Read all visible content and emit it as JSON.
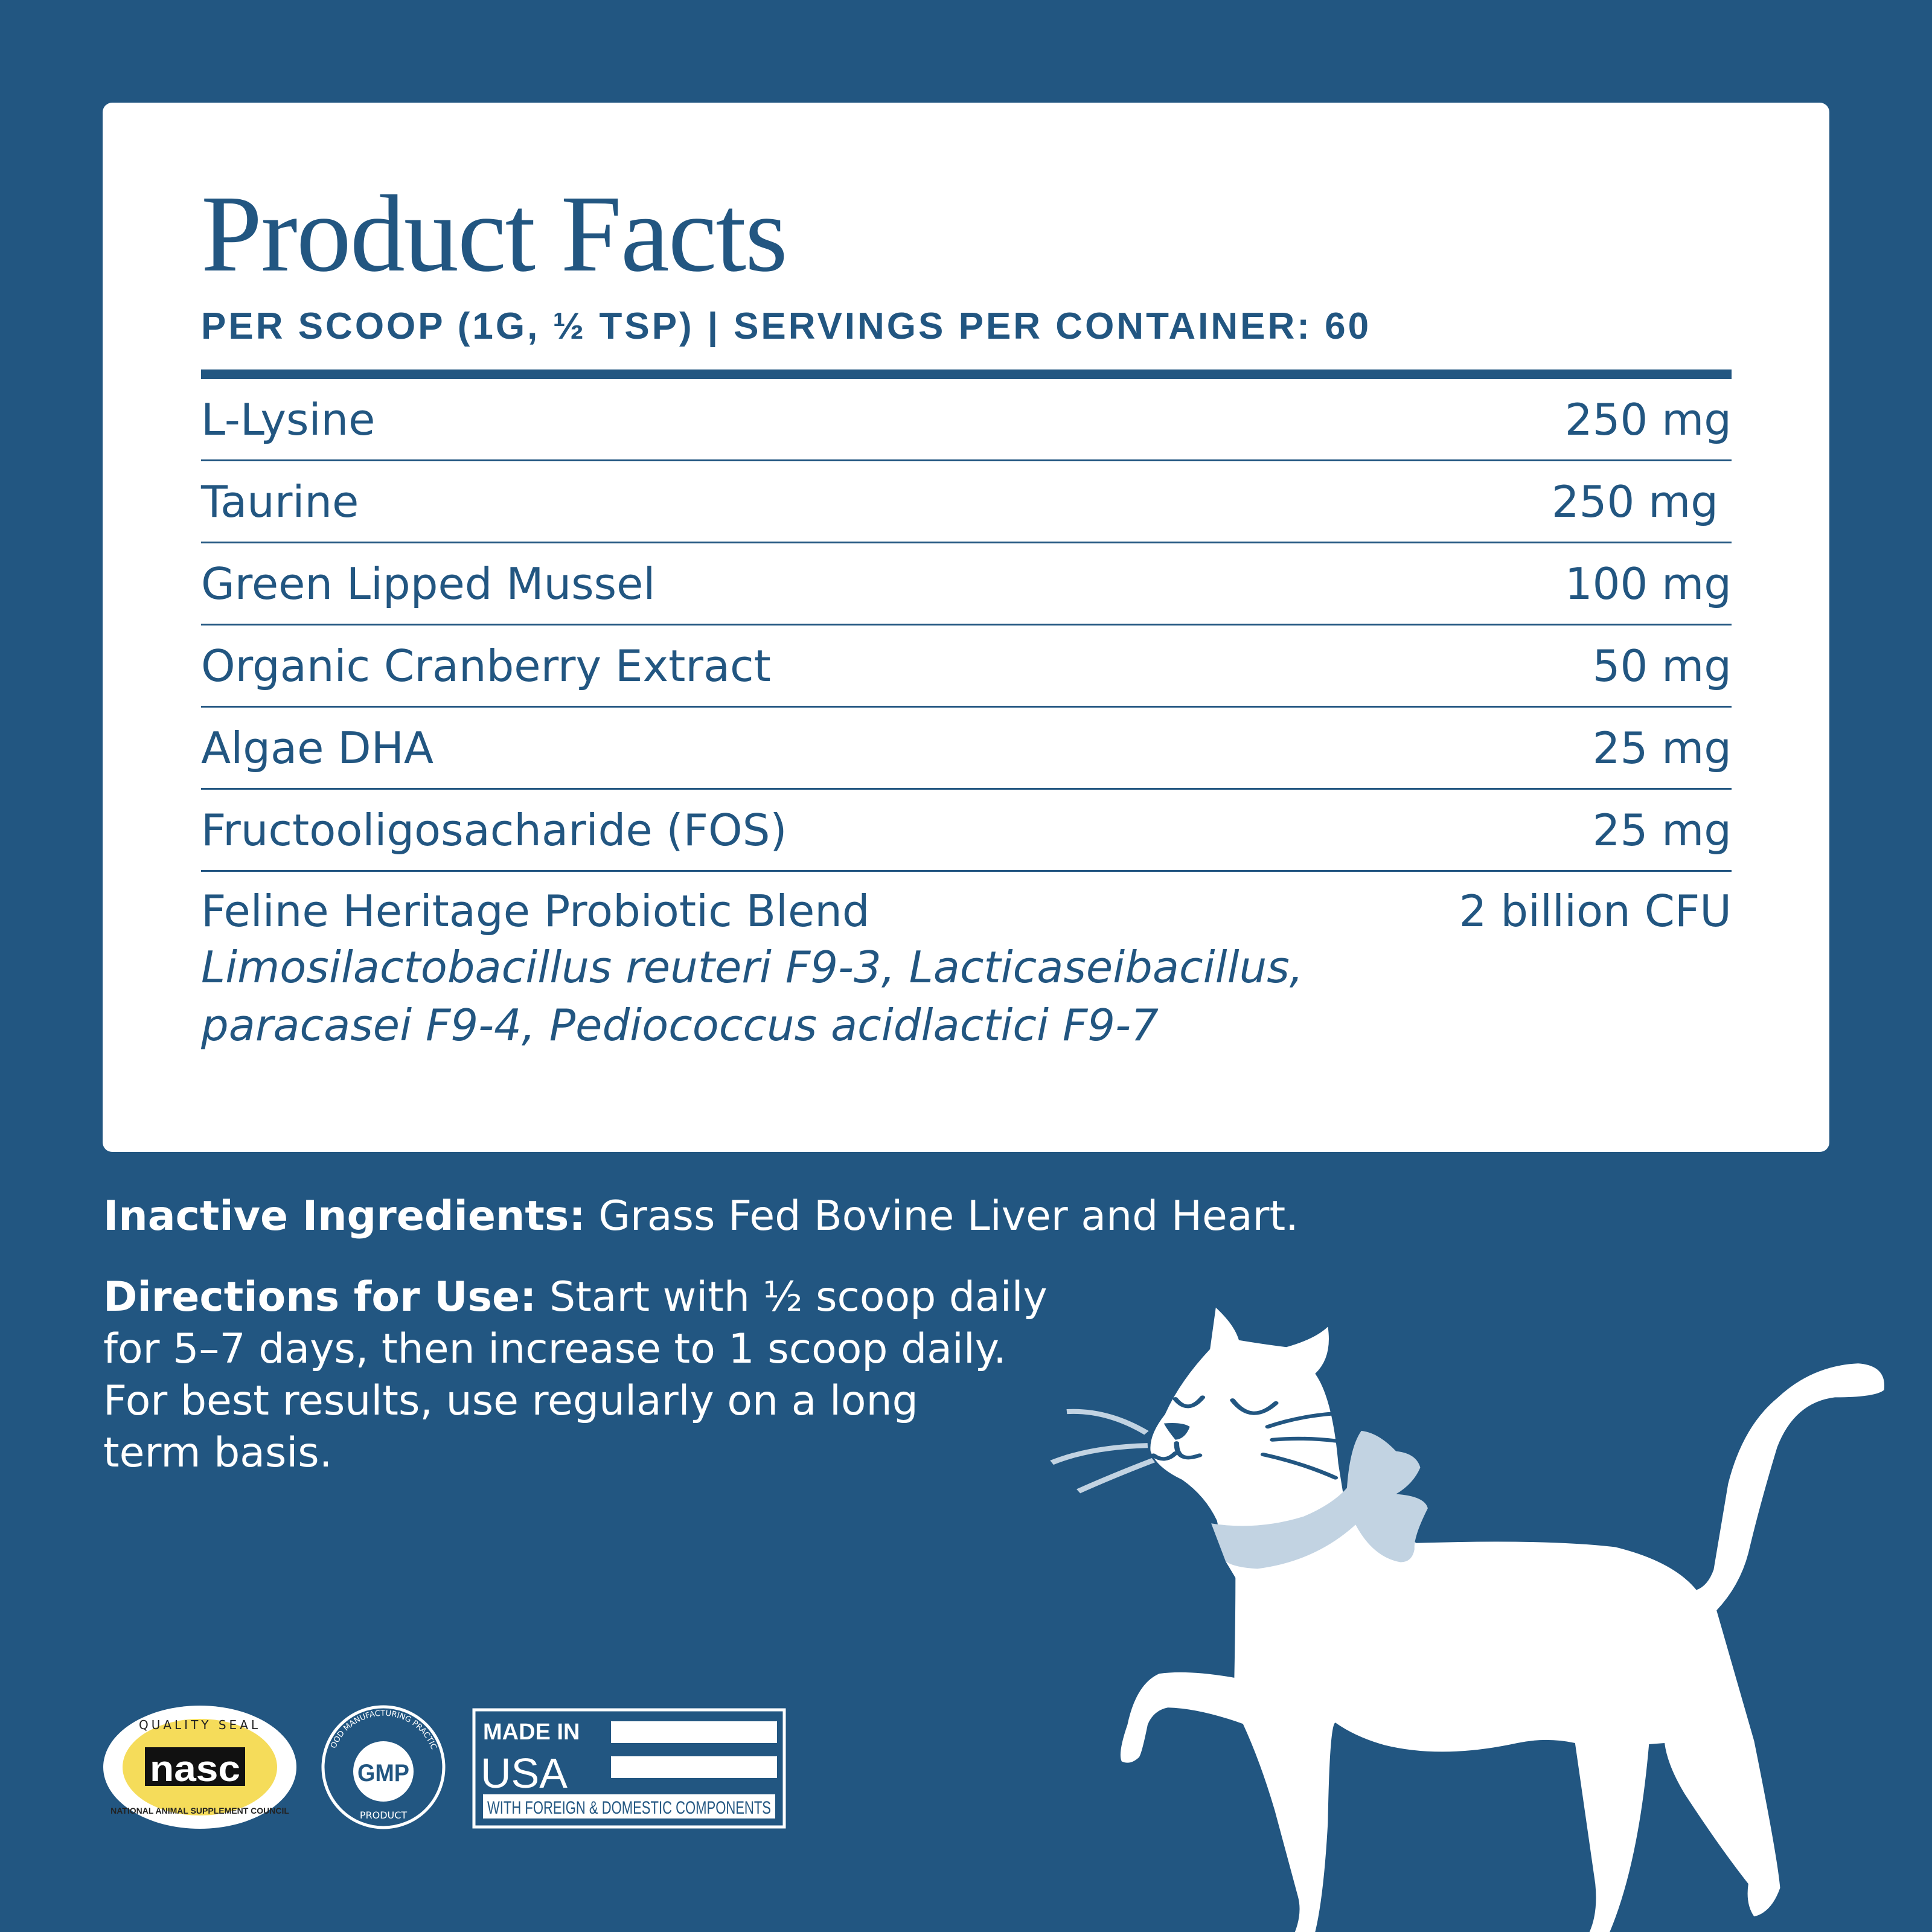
{
  "card": {
    "title": "Product Facts",
    "serving": "PER SCOOP (1G, ½ TSP)",
    "separator": "|",
    "servings_per_container": "SERVINGS PER CONTAINER: 60",
    "rows": [
      {
        "name": "L-Lysine",
        "amount": "250 mg"
      },
      {
        "name": "Taurine",
        "amount": "250 mg"
      },
      {
        "name": "Green Lipped Mussel",
        "amount": "100 mg"
      },
      {
        "name": "Organic Cranberry Extract",
        "amount": "50 mg"
      },
      {
        "name": "Algae DHA",
        "amount": "25 mg"
      },
      {
        "name": "Fructooligosacharide (FOS)",
        "amount": "25 mg"
      },
      {
        "name": "Feline Heritage Probiotic Blend",
        "amount": "2 billion CFU",
        "strains_line1": "Limosilactobacillus reuteri F9-3, Lacticaseibacillus,",
        "strains_line2": "paracasei F9-4, Pediococcus acidlactici F9-7"
      }
    ]
  },
  "inactive": {
    "label": "Inactive Ingredients:",
    "text": " Grass Fed Bovine Liver and Heart."
  },
  "directions": {
    "label": "Directions for Use:",
    "line1": " Start with ½ scoop daily",
    "line2": "for 5–7 days, then increase to 1 scoop daily.",
    "line3": "For best results, use regularly on a long",
    "line4": "term basis."
  },
  "badges": {
    "nasc": {
      "top": "QUALITY SEAL",
      "mark": "nasc",
      "bottom": "NATIONAL ANIMAL SUPPLEMENT COUNCIL"
    },
    "gmp": {
      "top": "GOOD MANUFACTURING PRACTICE",
      "mark": "GMP",
      "bottom": "PRODUCT"
    },
    "usa": {
      "line1": "MADE IN",
      "line2": "USA",
      "note": "WITH FOREIGN & DOMESTIC COMPONENTS"
    }
  },
  "colors": {
    "background": "#225681",
    "card": "#ffffff",
    "accent_light": "#c2d3e2",
    "nasc_yellow": "#f5dc5a"
  }
}
